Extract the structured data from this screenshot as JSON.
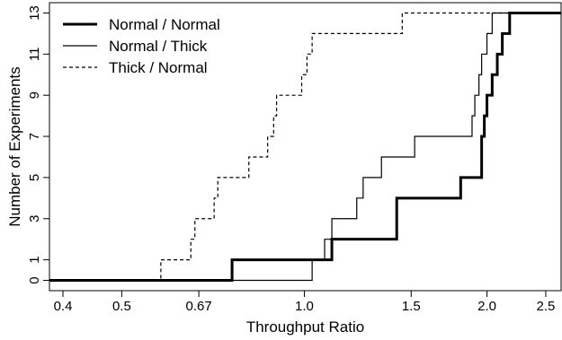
{
  "chart_data": {
    "type": "line",
    "xlabel": "Throughput Ratio",
    "ylabel": "Number of Experiments",
    "x_scale": "log",
    "xlim": [
      0.38,
      2.65
    ],
    "ylim": [
      -0.5,
      13.5
    ],
    "x_ticks": [
      {
        "value": 0.4,
        "label": "0.4"
      },
      {
        "value": 0.5,
        "label": "0.5"
      },
      {
        "value": 0.67,
        "label": "0.67"
      },
      {
        "value": 1.0,
        "label": "1.0"
      },
      {
        "value": 1.5,
        "label": "1.5"
      },
      {
        "value": 2.0,
        "label": "2.0"
      },
      {
        "value": 2.5,
        "label": "2.5"
      }
    ],
    "y_ticks": [
      {
        "value": 0,
        "label": "0"
      },
      {
        "value": 1,
        "label": "1"
      },
      {
        "value": 3,
        "label": "3"
      },
      {
        "value": 5,
        "label": "5"
      },
      {
        "value": 7,
        "label": "7"
      },
      {
        "value": 9,
        "label": "9"
      },
      {
        "value": 11,
        "label": "11"
      },
      {
        "value": 13,
        "label": "13"
      }
    ],
    "grid": false,
    "legend_position": "top-left",
    "series": [
      {
        "name": "Normal / Normal",
        "style": "thick-solid",
        "color": "#000000",
        "x": [
          0.76,
          1.11,
          1.42,
          1.81,
          1.96,
          1.98,
          2.0,
          2.04,
          2.08,
          2.12,
          2.18
        ],
        "y": [
          1,
          2,
          4,
          5,
          7,
          8,
          9,
          10,
          11,
          12,
          13
        ]
      },
      {
        "name": "Normal / Thick",
        "style": "thin-solid",
        "color": "#000000",
        "x": [
          1.03,
          1.08,
          1.11,
          1.22,
          1.25,
          1.34,
          1.52,
          1.89,
          1.91,
          1.94,
          1.96,
          2.0,
          2.04
        ],
        "y": [
          1,
          2,
          3,
          4,
          5,
          6,
          7,
          8,
          9,
          10,
          11,
          12,
          13
        ]
      },
      {
        "name": "Thick / Normal",
        "style": "dashed",
        "color": "#000000",
        "x": [
          0.58,
          0.65,
          0.66,
          0.71,
          0.72,
          0.81,
          0.87,
          0.89,
          0.9,
          0.99,
          1.01,
          1.03,
          1.45
        ],
        "y": [
          1,
          2,
          3,
          4,
          5,
          6,
          7,
          8,
          9,
          10,
          11,
          12,
          13
        ]
      }
    ]
  }
}
